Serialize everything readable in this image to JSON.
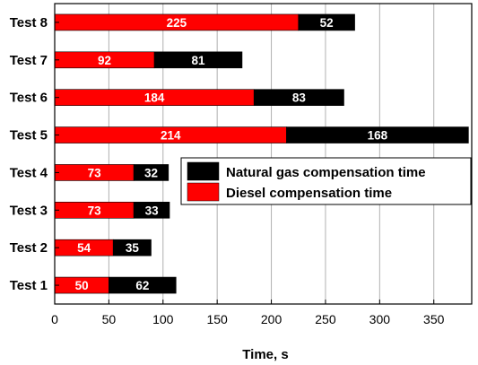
{
  "chart_data": {
    "type": "bar",
    "orientation": "horizontal",
    "stacked": true,
    "categories": [
      "Test 1",
      "Test 2",
      "Test 3",
      "Test 4",
      "Test 5",
      "Test 6",
      "Test 7",
      "Test 8"
    ],
    "series": [
      {
        "name": "Diesel compensation time",
        "color": "#ff0000",
        "values": [
          50,
          54,
          73,
          73,
          214,
          184,
          92,
          225
        ]
      },
      {
        "name": "Natural gas compensation time",
        "color": "#000000",
        "values": [
          62,
          35,
          33,
          32,
          168,
          83,
          81,
          52
        ]
      }
    ],
    "xlabel": "Time, s",
    "ylabel": "",
    "xlim": [
      0,
      385
    ],
    "xticks": [
      0,
      50,
      100,
      150,
      200,
      250,
      300,
      350
    ],
    "grid": "vertical",
    "legend_placement": "center-right",
    "legend_order": [
      "Natural gas compensation time",
      "Diesel compensation time"
    ]
  }
}
